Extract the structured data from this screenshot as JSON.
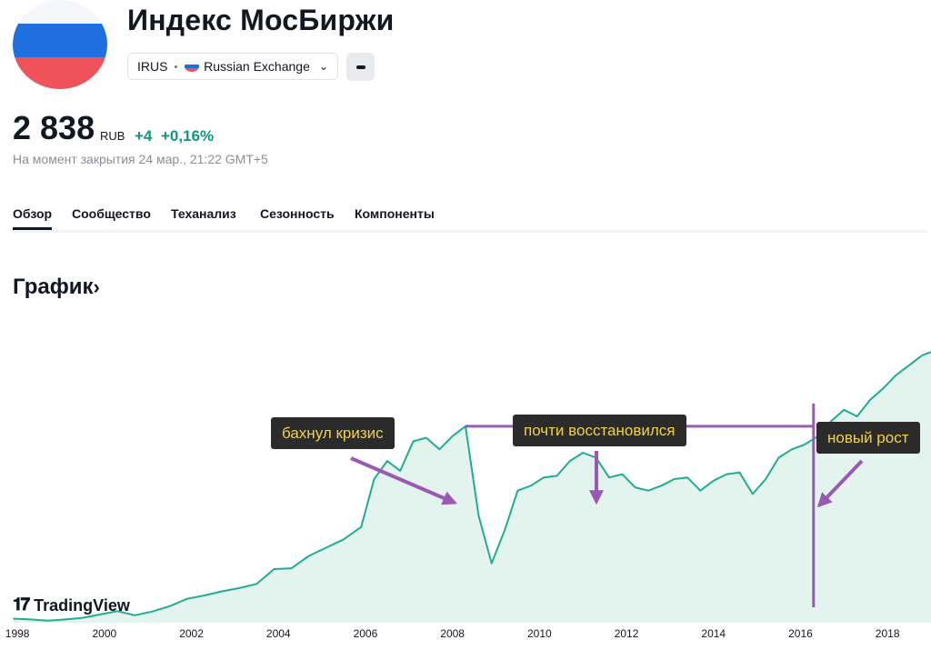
{
  "header": {
    "title": "Индекс МосБиржи",
    "symbol": "IRUS",
    "exchange": "Russian Exchange",
    "flag_colors": [
      "#f4f6f9",
      "#1f6fe0",
      "#f0525a"
    ]
  },
  "quote": {
    "price": "2 838",
    "currency": "RUB",
    "change": "+4",
    "change_percent": "+0,16%",
    "as_of": "На момент закрытия 24 мар., 21:22 GMT+5",
    "change_color": "#089981"
  },
  "tabs": [
    "Обзор",
    "Сообщество",
    "Теханализ",
    "Сезонность",
    "Компоненты"
  ],
  "section": {
    "title": "График",
    "arrow": "›"
  },
  "brand": {
    "mark": "𝟏𝟕",
    "name": "TradingView"
  },
  "annotations": [
    {
      "text": "бахнул кризис"
    },
    {
      "text": "почти восстановился"
    },
    {
      "text": "новый рост"
    }
  ],
  "chart_data": {
    "type": "area",
    "x_ticks": [
      "1998",
      "2000",
      "2002",
      "2004",
      "2006",
      "2008",
      "2010",
      "2012",
      "2014",
      "2016",
      "2018"
    ],
    "x": [
      1997.9,
      1998.3,
      1998.7,
      1999.1,
      1999.5,
      1999.9,
      2000.3,
      2000.7,
      2001.1,
      2001.5,
      2001.9,
      2002.3,
      2002.7,
      2003.1,
      2003.5,
      2003.9,
      2004.3,
      2004.7,
      2005.1,
      2005.5,
      2005.9,
      2006.2,
      2006.5,
      2006.8,
      2007.1,
      2007.4,
      2007.7,
      2008.0,
      2008.3,
      2008.6,
      2008.9,
      2009.2,
      2009.5,
      2009.8,
      2010.1,
      2010.4,
      2010.7,
      2011.0,
      2011.3,
      2011.6,
      2011.9,
      2012.2,
      2012.5,
      2012.8,
      2013.1,
      2013.4,
      2013.7,
      2014.0,
      2014.3,
      2014.6,
      2014.9,
      2015.2,
      2015.5,
      2015.8,
      2016.1,
      2016.4,
      2016.7,
      2017.0,
      2017.3,
      2017.6,
      2017.9,
      2018.2,
      2018.5,
      2018.8,
      2019.0
    ],
    "values": [
      25,
      20,
      12,
      20,
      30,
      50,
      70,
      45,
      68,
      100,
      145,
      165,
      190,
      210,
      235,
      325,
      330,
      405,
      455,
      505,
      580,
      870,
      980,
      920,
      1100,
      1120,
      1050,
      1130,
      1190,
      650,
      360,
      560,
      800,
      830,
      880,
      890,
      980,
      1030,
      1000,
      880,
      900,
      820,
      800,
      830,
      870,
      880,
      800,
      860,
      900,
      910,
      780,
      870,
      1000,
      1050,
      1080,
      1130,
      1220,
      1290,
      1250,
      1350,
      1420,
      1500,
      1560,
      1620,
      1640
    ],
    "ylim": [
      0,
      1900
    ],
    "xlim": [
      1997.6,
      2019.0
    ],
    "line_color": "#22ab94",
    "fill_color": "#e3f4ef",
    "marker_color": "#9b59b6",
    "reference_level": 1190,
    "reference_range": [
      2008.3,
      2016.3
    ],
    "event_marker_x": 2016.3
  }
}
